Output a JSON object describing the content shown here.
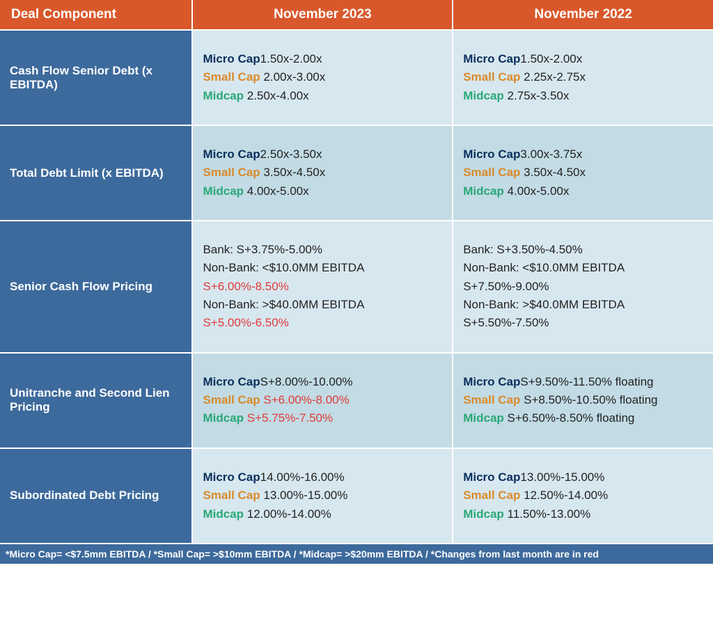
{
  "colors": {
    "header_bg": "#d9582b",
    "component_bg": "#3d6a9c",
    "row_light": "#d7e7ef",
    "row_dark": "#c2dbe4",
    "micro": "#0a2f5c",
    "small": "#d98a2b",
    "mid": "#2aa876",
    "changed": "#e03a3a",
    "text": "#222222",
    "white": "#ffffff"
  },
  "headers": {
    "component": "Deal Component",
    "period_current": "November 2023",
    "period_prior": "November 2022"
  },
  "cap_labels": {
    "micro": "Micro Cap",
    "small": "Small Cap",
    "mid": "Midcap"
  },
  "rows": [
    {
      "component": "Cash Flow Senior Debt (x EBITDA)",
      "current": {
        "micro": "1.50x-2.00x",
        "small": "2.00x-3.00x",
        "mid": "2.50x-4.00x"
      },
      "prior": {
        "micro": "1.50x-2.00x",
        "small": "2.25x-2.75x",
        "mid": "2.75x-3.50x"
      }
    },
    {
      "component": "Total Debt Limit (x EBITDA)",
      "current": {
        "micro": "2.50x-3.50x",
        "small": "3.50x-4.50x",
        "mid": "4.00x-5.00x"
      },
      "prior": {
        "micro": "3.00x-3.75x",
        "small": "3.50x-4.50x",
        "mid": "4.00x-5.00x"
      }
    },
    {
      "component": "Senior Cash Flow Pricing",
      "current_lines": [
        {
          "prefix": "Bank: S+3.75%-5.00%",
          "changed": ""
        },
        {
          "prefix": "Non-Bank:  <$10.0MM EBITDA ",
          "changed": "S+6.00%-8.50%"
        },
        {
          "prefix": "Non-Bank: >$40.0MM EBITDA ",
          "changed": "S+5.00%-6.50%"
        }
      ],
      "prior_lines": [
        {
          "prefix": "Bank: S+3.50%-4.50%",
          "changed": ""
        },
        {
          "prefix": "Non-Bank: <$10.0MM EBITDA S+7.50%-9.00%",
          "changed": ""
        },
        {
          "prefix": "Non-Bank: >$40.0MM EBITDA S+5.50%-7.50%",
          "changed": ""
        }
      ]
    },
    {
      "component": "Unitranche and Second Lien Pricing",
      "current": {
        "micro": "S+8.00%-10.00%",
        "small_changed": "S+6.00%-8.00%",
        "mid_changed": "S+5.75%-7.50%"
      },
      "prior": {
        "micro": "S+9.50%-11.50% floating",
        "small": "S+8.50%-10.50% floating",
        "mid": "S+6.50%-8.50% floating"
      }
    },
    {
      "component": "Subordinated Debt Pricing",
      "current": {
        "micro": "14.00%-16.00%",
        "small": "13.00%-15.00%",
        "mid": "12.00%-14.00%"
      },
      "prior": {
        "micro": "13.00%-15.00%",
        "small": "12.50%-14.00%",
        "mid": "11.50%-13.00%"
      }
    }
  ],
  "footnote": "*Micro Cap= <$7.5mm EBITDA / *Small Cap= >$10mm EBITDA / *Midcap= >$20mm EBITDA / *Changes from last month are in red"
}
